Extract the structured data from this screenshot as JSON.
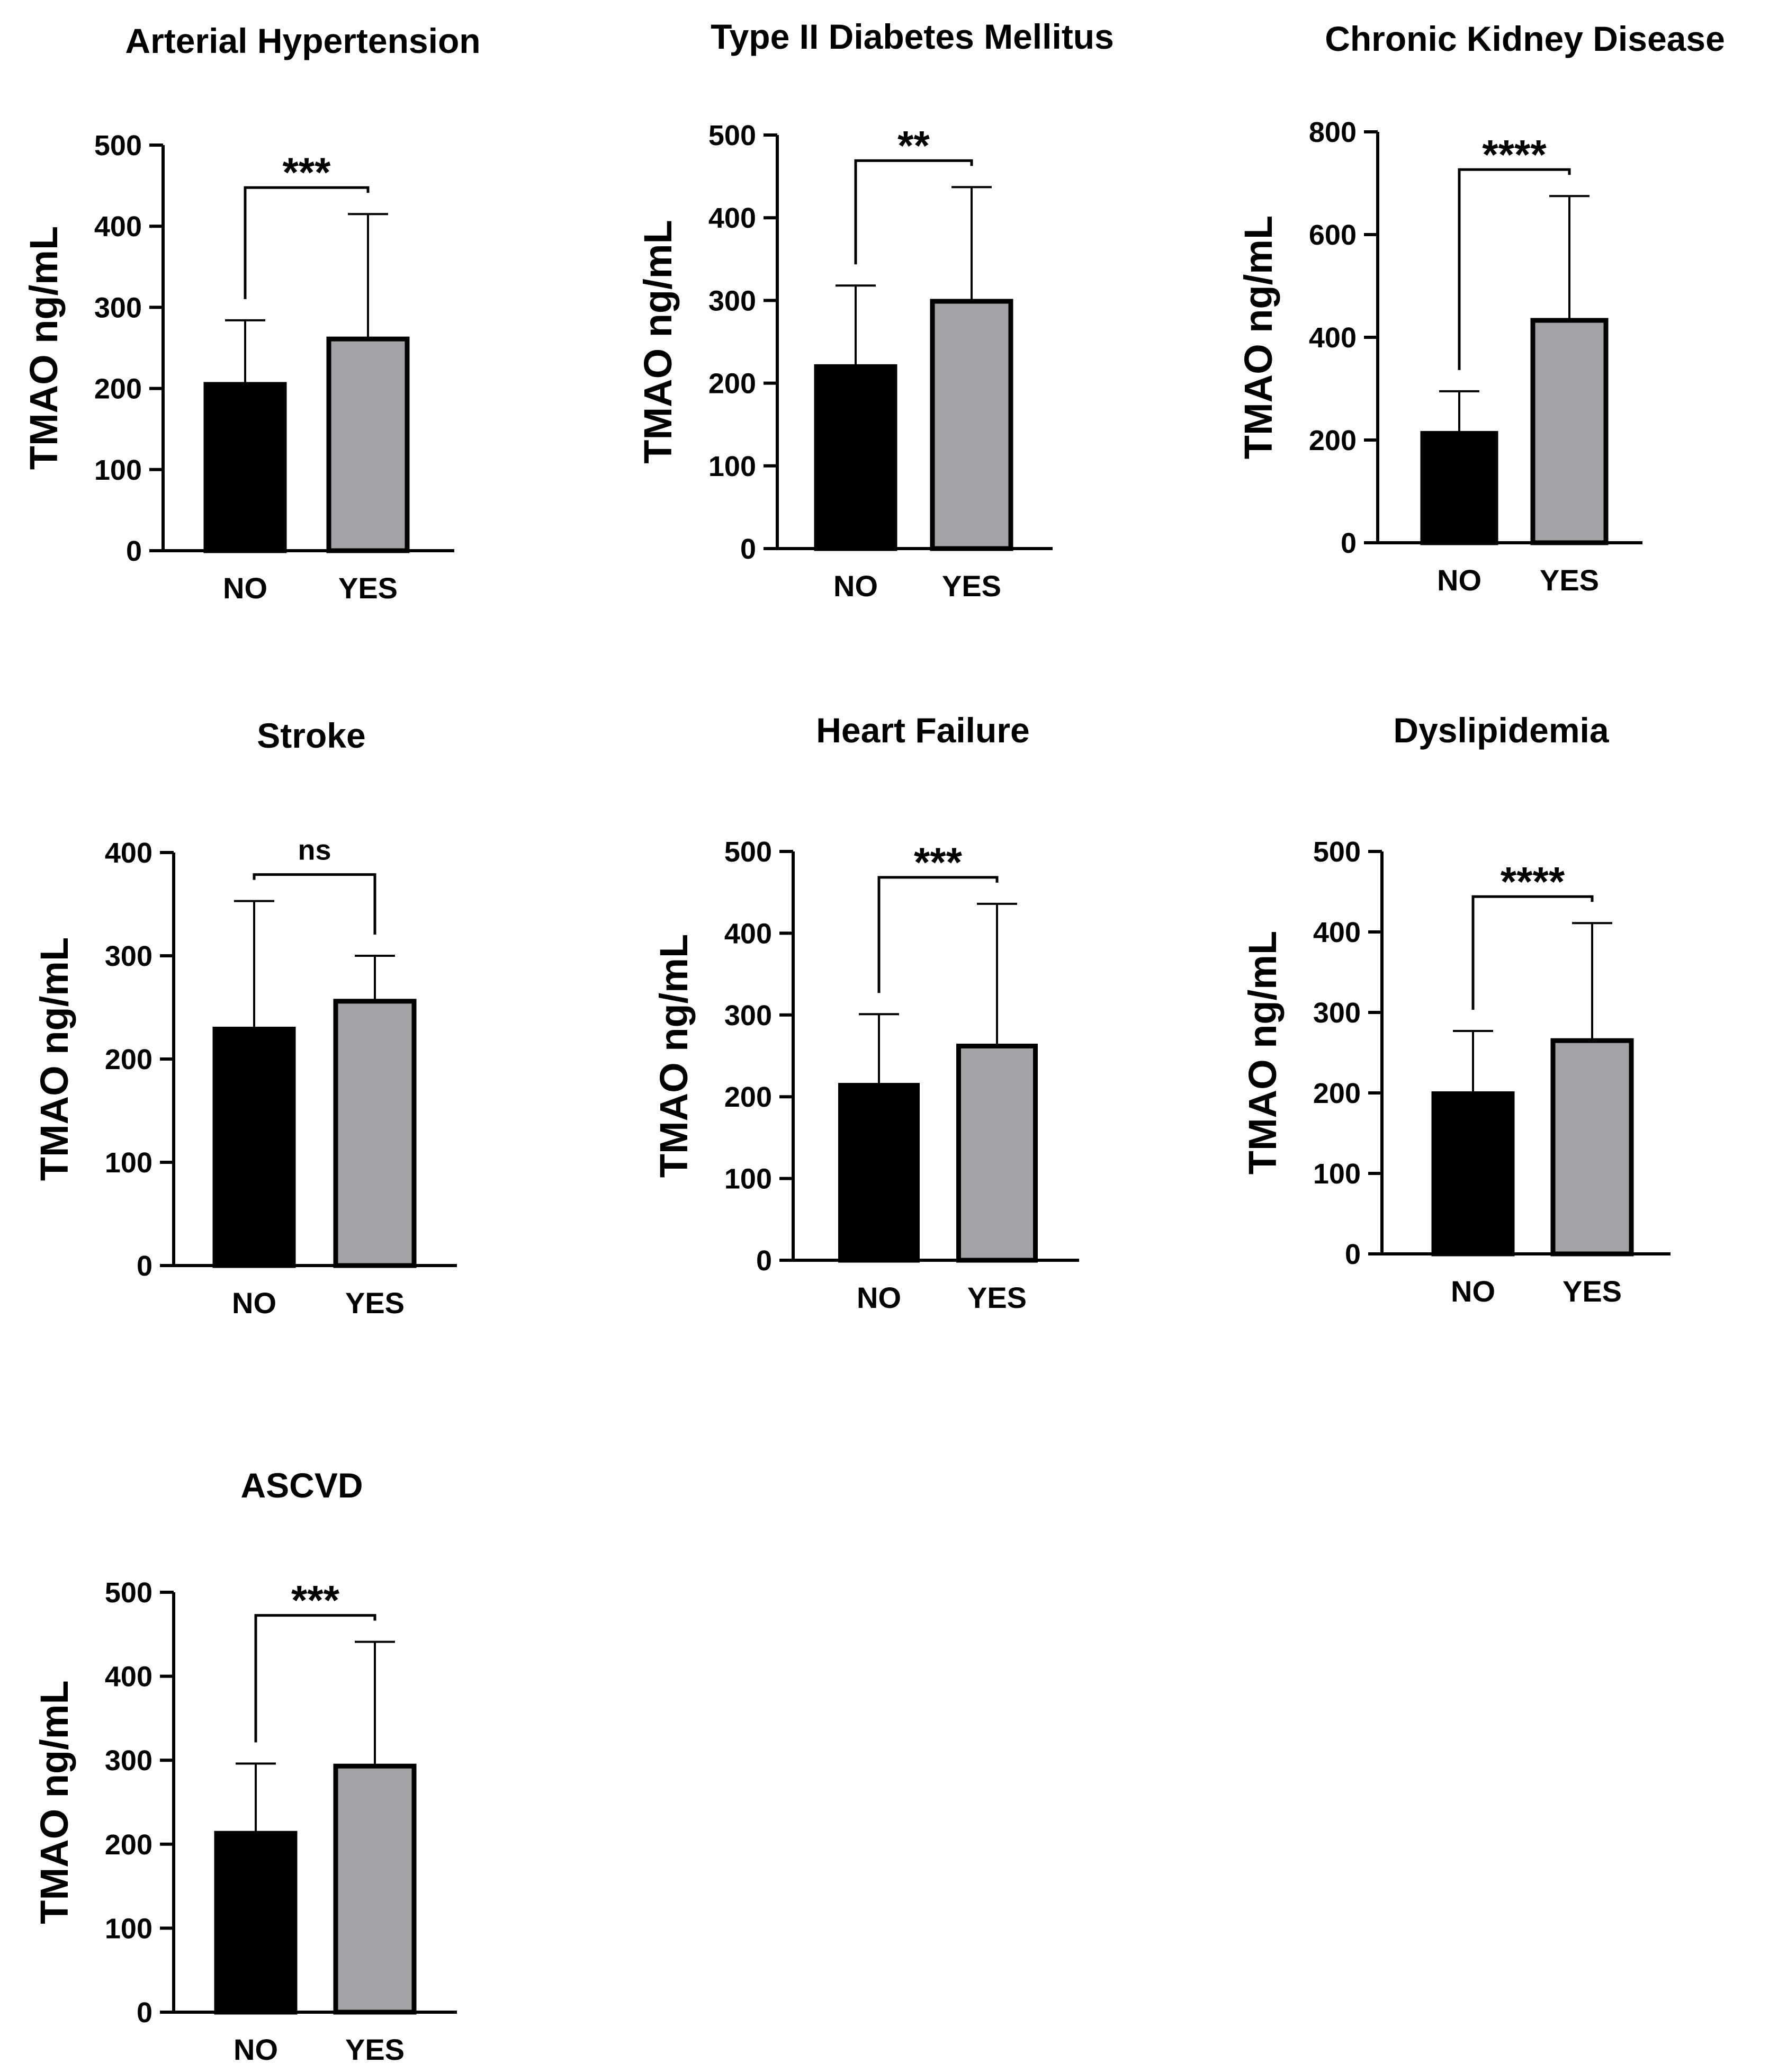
{
  "figure": {
    "panel_count": 7
  },
  "chart_data": [
    {
      "type": "bar",
      "title": "Arterial  Hypertension",
      "ylabel": "TMAO ng/mL",
      "xlabel": "",
      "categories": [
        "NO",
        "YES"
      ],
      "values": [
        205,
        261
      ],
      "error": [
        79,
        154
      ],
      "ylim": [
        0,
        500
      ],
      "yticks": [
        0,
        100,
        200,
        300,
        400,
        500
      ],
      "significance": "***",
      "colors": [
        "#000000",
        "#a3a3a7"
      ]
    },
    {
      "type": "bar",
      "title": "Type II Diabetes  Mellitus",
      "ylabel": "TMAO ng/mL",
      "xlabel": "",
      "categories": [
        "NO",
        "YES"
      ],
      "values": [
        220,
        299
      ],
      "error": [
        98,
        138
      ],
      "ylim": [
        0,
        500
      ],
      "yticks": [
        0,
        100,
        200,
        300,
        400,
        500
      ],
      "significance": "**",
      "colors": [
        "#000000",
        "#a3a3a7"
      ]
    },
    {
      "type": "bar",
      "title": "Chronic  Kidney Disease",
      "ylabel": "TMAO ng/mL",
      "xlabel": "",
      "categories": [
        "NO",
        "YES"
      ],
      "values": [
        213,
        433
      ],
      "error": [
        82,
        242
      ],
      "ylim": [
        0,
        800
      ],
      "yticks": [
        0,
        200,
        400,
        600,
        800
      ],
      "significance": "****",
      "colors": [
        "#000000",
        "#a3a3a7"
      ]
    },
    {
      "type": "bar",
      "title": "Stroke",
      "ylabel": "TMAO ng/mL",
      "xlabel": "",
      "categories": [
        "NO",
        "YES"
      ],
      "values": [
        229,
        256
      ],
      "error": [
        124,
        44
      ],
      "ylim": [
        0,
        400
      ],
      "yticks": [
        0,
        100,
        200,
        300,
        400
      ],
      "significance": "ns",
      "colors": [
        "#000000",
        "#a3a3a7"
      ]
    },
    {
      "type": "bar",
      "title": "Heart Failure",
      "ylabel": "TMAO ng/mL",
      "xlabel": "",
      "categories": [
        "NO",
        "YES"
      ],
      "values": [
        214,
        262
      ],
      "error": [
        87,
        174
      ],
      "ylim": [
        0,
        500
      ],
      "yticks": [
        0,
        100,
        200,
        300,
        400,
        500
      ],
      "significance": "***",
      "colors": [
        "#000000",
        "#a3a3a7"
      ]
    },
    {
      "type": "bar",
      "title": "Dyslipidemia",
      "ylabel": "TMAO ng/mL",
      "xlabel": "",
      "categories": [
        "NO",
        "YES"
      ],
      "values": [
        199,
        265
      ],
      "error": [
        78,
        146
      ],
      "ylim": [
        0,
        500
      ],
      "yticks": [
        0,
        100,
        200,
        300,
        400,
        500
      ],
      "significance": "****",
      "colors": [
        "#000000",
        "#a3a3a7"
      ]
    },
    {
      "type": "bar",
      "title": "ASCVD",
      "ylabel": "TMAO ng/mL",
      "xlabel": "",
      "categories": [
        "NO",
        "YES"
      ],
      "values": [
        213,
        293
      ],
      "error": [
        83,
        148
      ],
      "ylim": [
        0,
        500
      ],
      "yticks": [
        0,
        100,
        200,
        300,
        400,
        500
      ],
      "significance": "***",
      "colors": [
        "#000000",
        "#a3a3a7"
      ]
    }
  ]
}
